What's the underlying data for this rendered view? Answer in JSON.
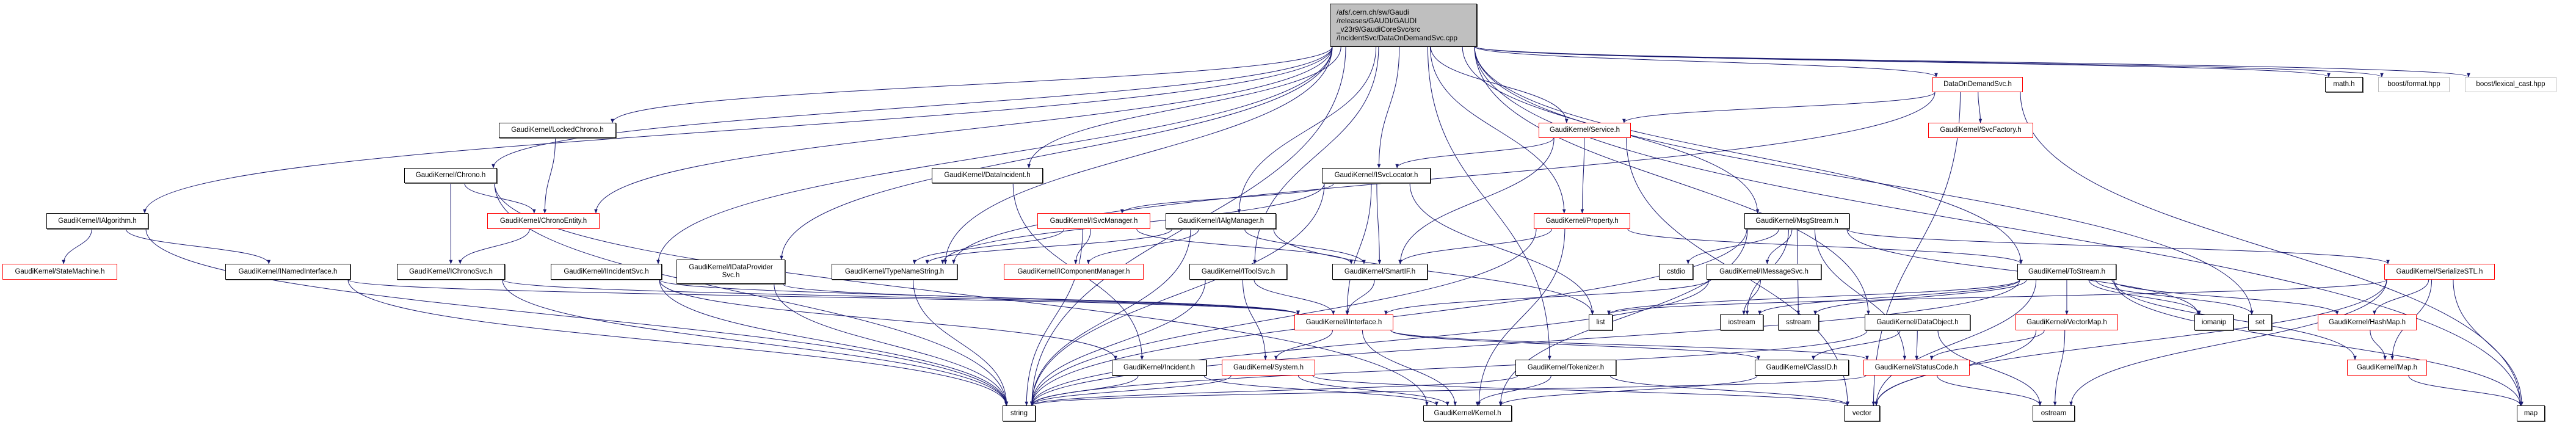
{
  "graph": {
    "edge_color": "#191970",
    "nodes": [
      {
        "id": "root",
        "lines": [
          "/afs/.cern.ch/sw/Gaudi",
          "/releases/GAUDI/GAUDI",
          "_v23r9/GaudiCoreSvc/src",
          "/IncidentSvc/DataOnDemandSvc.cpp"
        ],
        "style": "root"
      },
      {
        "id": "ialgorithm",
        "lines": [
          "GaudiKernel/IAlgorithm.h"
        ],
        "style": "normal"
      },
      {
        "id": "statemachine",
        "lines": [
          "GaudiKernel/StateMachine.h"
        ],
        "style": "red"
      },
      {
        "id": "inamedinterface",
        "lines": [
          "GaudiKernel/INamedInterface.h"
        ],
        "style": "normal"
      },
      {
        "id": "lockedchrono",
        "lines": [
          "GaudiKernel/LockedChrono.h"
        ],
        "style": "normal"
      },
      {
        "id": "chrono",
        "lines": [
          "GaudiKernel/Chrono.h"
        ],
        "style": "normal"
      },
      {
        "id": "chronoentity",
        "lines": [
          "GaudiKernel/ChronoEntity.h"
        ],
        "style": "red"
      },
      {
        "id": "ichronosvc",
        "lines": [
          "GaudiKernel/IChronoSvc.h"
        ],
        "style": "normal"
      },
      {
        "id": "iincidentsvc",
        "lines": [
          "GaudiKernel/IIncidentSvc.h"
        ],
        "style": "normal"
      },
      {
        "id": "idataprovidersvc",
        "lines": [
          "GaudiKernel/IDataProvider",
          "Svc.h"
        ],
        "style": "normal"
      },
      {
        "id": "typenamestring",
        "lines": [
          "GaudiKernel/TypeNameString.h"
        ],
        "style": "normal"
      },
      {
        "id": "dataincident",
        "lines": [
          "GaudiKernel/DataIncident.h"
        ],
        "style": "normal"
      },
      {
        "id": "isvclocator",
        "lines": [
          "GaudiKernel/ISvcLocator.h"
        ],
        "style": "normal"
      },
      {
        "id": "service",
        "lines": [
          "GaudiKernel/Service.h"
        ],
        "style": "red"
      },
      {
        "id": "isvcmanager",
        "lines": [
          "GaudiKernel/ISvcManager.h"
        ],
        "style": "red"
      },
      {
        "id": "ialgmanager",
        "lines": [
          "GaudiKernel/IAlgManager.h"
        ],
        "style": "normal"
      },
      {
        "id": "property",
        "lines": [
          "GaudiKernel/Property.h"
        ],
        "style": "red"
      },
      {
        "id": "icomponentmanager",
        "lines": [
          "GaudiKernel/IComponentManager.h"
        ],
        "style": "red"
      },
      {
        "id": "itoolsvc",
        "lines": [
          "GaudiKernel/IToolSvc.h"
        ],
        "style": "normal"
      },
      {
        "id": "smartif",
        "lines": [
          "GaudiKernel/SmartIF.h"
        ],
        "style": "normal"
      },
      {
        "id": "cstdio",
        "lines": [
          "cstdio"
        ],
        "style": "normal"
      },
      {
        "id": "iinterface",
        "lines": [
          "GaudiKernel/IInterface.h"
        ],
        "style": "red"
      },
      {
        "id": "list",
        "lines": [
          "list"
        ],
        "style": "normal"
      },
      {
        "id": "incident",
        "lines": [
          "GaudiKernel/Incident.h"
        ],
        "style": "normal"
      },
      {
        "id": "system",
        "lines": [
          "GaudiKernel/System.h"
        ],
        "style": "red"
      },
      {
        "id": "tokenizer",
        "lines": [
          "GaudiKernel/Tokenizer.h"
        ],
        "style": "normal"
      },
      {
        "id": "string",
        "lines": [
          "string"
        ],
        "style": "normal"
      },
      {
        "id": "kernel",
        "lines": [
          "GaudiKernel/Kernel.h"
        ],
        "style": "normal"
      },
      {
        "id": "dataondemandsvc",
        "lines": [
          "DataOnDemandSvc.h"
        ],
        "style": "red"
      },
      {
        "id": "mathh",
        "lines": [
          "math.h"
        ],
        "style": "normal"
      },
      {
        "id": "boostformat",
        "lines": [
          "boost/format.hpp"
        ],
        "style": "gray"
      },
      {
        "id": "boostlexical",
        "lines": [
          "boost/lexical_cast.hpp"
        ],
        "style": "gray"
      },
      {
        "id": "svcfactory",
        "lines": [
          "GaudiKernel/SvcFactory.h"
        ],
        "style": "red"
      },
      {
        "id": "msgstream",
        "lines": [
          "GaudiKernel/MsgStream.h"
        ],
        "style": "normal"
      },
      {
        "id": "imessagesvc",
        "lines": [
          "GaudiKernel/IMessageSvc.h"
        ],
        "style": "normal"
      },
      {
        "id": "tostream",
        "lines": [
          "GaudiKernel/ToStream.h"
        ],
        "style": "normal"
      },
      {
        "id": "serializestl",
        "lines": [
          "GaudiKernel/SerializeSTL.h"
        ],
        "style": "red"
      },
      {
        "id": "iostream",
        "lines": [
          "iostream"
        ],
        "style": "normal"
      },
      {
        "id": "sstream",
        "lines": [
          "sstream"
        ],
        "style": "normal"
      },
      {
        "id": "dataobject",
        "lines": [
          "GaudiKernel/DataObject.h"
        ],
        "style": "normal"
      },
      {
        "id": "vectormap",
        "lines": [
          "GaudiKernel/VectorMap.h"
        ],
        "style": "red"
      },
      {
        "id": "iomanip",
        "lines": [
          "iomanip"
        ],
        "style": "normal"
      },
      {
        "id": "set",
        "lines": [
          "set"
        ],
        "style": "normal"
      },
      {
        "id": "hashmap",
        "lines": [
          "GaudiKernel/HashMap.h"
        ],
        "style": "red"
      },
      {
        "id": "classid",
        "lines": [
          "GaudiKernel/ClassID.h"
        ],
        "style": "normal"
      },
      {
        "id": "statuscode",
        "lines": [
          "GaudiKernel/StatusCode.h"
        ],
        "style": "red"
      },
      {
        "id": "maph",
        "lines": [
          "GaudiKernel/Map.h"
        ],
        "style": "red"
      },
      {
        "id": "vector",
        "lines": [
          "vector"
        ],
        "style": "normal"
      },
      {
        "id": "ostream",
        "lines": [
          "ostream"
        ],
        "style": "normal"
      },
      {
        "id": "map",
        "lines": [
          "map"
        ],
        "style": "normal"
      }
    ],
    "edges": [
      [
        "root",
        "ialgorithm"
      ],
      [
        "root",
        "string"
      ],
      [
        "root",
        "lockedchrono"
      ],
      [
        "root",
        "chrono"
      ],
      [
        "root",
        "iincidentsvc"
      ],
      [
        "root",
        "idataprovidersvc"
      ],
      [
        "root",
        "dataincident"
      ],
      [
        "root",
        "typenamestring"
      ],
      [
        "root",
        "ialgmanager"
      ],
      [
        "root",
        "itoolsvc"
      ],
      [
        "root",
        "isvclocator"
      ],
      [
        "root",
        "tokenizer"
      ],
      [
        "root",
        "property"
      ],
      [
        "root",
        "msgstream"
      ],
      [
        "root",
        "dataondemandsvc"
      ],
      [
        "root",
        "dataobject"
      ],
      [
        "root",
        "tostream"
      ],
      [
        "root",
        "set"
      ],
      [
        "root",
        "map"
      ],
      [
        "root",
        "mathh"
      ],
      [
        "root",
        "boostformat"
      ],
      [
        "root",
        "boostlexical"
      ],
      [
        "root",
        "chronoentity"
      ],
      [
        "root",
        "service"
      ],
      [
        "ialgorithm",
        "statemachine"
      ],
      [
        "ialgorithm",
        "inamedinterface"
      ],
      [
        "ialgorithm",
        "string"
      ],
      [
        "lockedchrono",
        "chronoentity"
      ],
      [
        "chrono",
        "chronoentity"
      ],
      [
        "chrono",
        "ichronosvc"
      ],
      [
        "chrono",
        "string"
      ],
      [
        "chrono",
        "kernel"
      ],
      [
        "chronoentity",
        "ichronosvc"
      ],
      [
        "inamedinterface",
        "iinterface"
      ],
      [
        "inamedinterface",
        "string"
      ],
      [
        "ichronosvc",
        "iinterface"
      ],
      [
        "ichronosvc",
        "string"
      ],
      [
        "iincidentsvc",
        "iinterface"
      ],
      [
        "iincidentsvc",
        "incident"
      ],
      [
        "iincidentsvc",
        "string"
      ],
      [
        "idataprovidersvc",
        "iinterface"
      ],
      [
        "idataprovidersvc",
        "string"
      ],
      [
        "dataincident",
        "incident"
      ],
      [
        "dataondemandsvc",
        "service"
      ],
      [
        "dataondemandsvc",
        "svcfactory"
      ],
      [
        "dataondemandsvc",
        "typenamestring"
      ],
      [
        "dataondemandsvc",
        "vector"
      ],
      [
        "dataondemandsvc",
        "map"
      ],
      [
        "service",
        "isvclocator"
      ],
      [
        "service",
        "smartif"
      ],
      [
        "service",
        "property"
      ],
      [
        "service",
        "vector"
      ],
      [
        "isvclocator",
        "isvcmanager"
      ],
      [
        "isvclocator",
        "typenamestring"
      ],
      [
        "isvclocator",
        "smartif"
      ],
      [
        "isvclocator",
        "iinterface"
      ],
      [
        "isvclocator",
        "list"
      ],
      [
        "isvclocator",
        "string"
      ],
      [
        "isvcmanager",
        "typenamestring"
      ],
      [
        "isvcmanager",
        "icomponentmanager"
      ],
      [
        "isvcmanager",
        "smartif"
      ],
      [
        "isvcmanager",
        "string"
      ],
      [
        "ialgmanager",
        "typenamestring"
      ],
      [
        "ialgmanager",
        "icomponentmanager"
      ],
      [
        "ialgmanager",
        "smartif"
      ],
      [
        "ialgmanager",
        "string"
      ],
      [
        "ialgmanager",
        "list"
      ],
      [
        "itoolsvc",
        "iinterface"
      ],
      [
        "itoolsvc",
        "system"
      ],
      [
        "itoolsvc",
        "string"
      ],
      [
        "smartif",
        "iinterface"
      ],
      [
        "property",
        "smartif"
      ],
      [
        "property",
        "tostream"
      ],
      [
        "property",
        "string"
      ],
      [
        "property",
        "kernel"
      ],
      [
        "msgstream",
        "imessagesvc"
      ],
      [
        "msgstream",
        "cstdio"
      ],
      [
        "msgstream",
        "iostream"
      ],
      [
        "msgstream",
        "sstream"
      ],
      [
        "msgstream",
        "iomanip"
      ],
      [
        "msgstream",
        "string"
      ],
      [
        "msgstream",
        "serializestl"
      ],
      [
        "msgstream",
        "kernel"
      ],
      [
        "msgstream",
        "statuscode"
      ],
      [
        "imessagesvc",
        "iinterface"
      ],
      [
        "imessagesvc",
        "iostream"
      ],
      [
        "imessagesvc",
        "string"
      ],
      [
        "tostream",
        "iostream"
      ],
      [
        "tostream",
        "sstream"
      ],
      [
        "tostream",
        "string"
      ],
      [
        "tostream",
        "iomanip"
      ],
      [
        "tostream",
        "set"
      ],
      [
        "tostream",
        "list"
      ],
      [
        "tostream",
        "hashmap"
      ],
      [
        "tostream",
        "maph"
      ],
      [
        "tostream",
        "vectormap"
      ],
      [
        "tostream",
        "map"
      ],
      [
        "tostream",
        "vector"
      ],
      [
        "serializestl",
        "list"
      ],
      [
        "serializestl",
        "hashmap"
      ],
      [
        "serializestl",
        "maph"
      ],
      [
        "serializestl",
        "map"
      ],
      [
        "serializestl",
        "vector"
      ],
      [
        "serializestl",
        "ostream"
      ],
      [
        "dataobject",
        "classid"
      ],
      [
        "dataobject",
        "statuscode"
      ],
      [
        "dataobject",
        "ostream"
      ],
      [
        "dataobject",
        "string"
      ],
      [
        "vectormap",
        "statuscode"
      ],
      [
        "vectormap",
        "vector"
      ],
      [
        "vectormap",
        "ostream"
      ],
      [
        "hashmap",
        "maph"
      ],
      [
        "maph",
        "map"
      ],
      [
        "iinterface",
        "system"
      ],
      [
        "iinterface",
        "kernel"
      ],
      [
        "iinterface",
        "statuscode"
      ],
      [
        "iinterface",
        "classid"
      ],
      [
        "system",
        "string"
      ],
      [
        "system",
        "kernel"
      ],
      [
        "system",
        "vector"
      ],
      [
        "incident",
        "string"
      ],
      [
        "incident",
        "kernel"
      ],
      [
        "tokenizer",
        "string"
      ],
      [
        "tokenizer",
        "kernel"
      ],
      [
        "tokenizer",
        "vector"
      ],
      [
        "statuscode",
        "ostream"
      ],
      [
        "statuscode",
        "string"
      ],
      [
        "classid",
        "kernel"
      ],
      [
        "typenamestring",
        "string"
      ]
    ]
  }
}
